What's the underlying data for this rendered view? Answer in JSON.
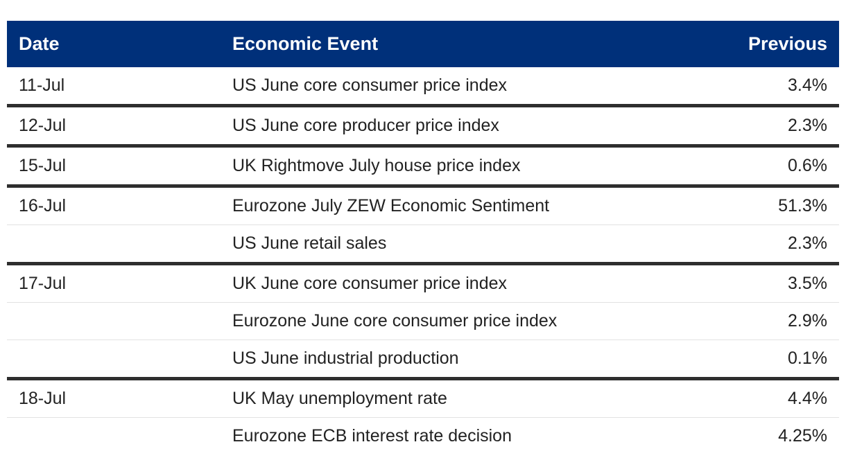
{
  "table": {
    "headers": {
      "date": "Date",
      "event": "Economic Event",
      "previous": "Previous"
    },
    "groups": [
      {
        "date": "11-Jul",
        "rows": [
          {
            "event": "US June core consumer price index",
            "previous": "3.4%"
          }
        ]
      },
      {
        "date": "12-Jul",
        "rows": [
          {
            "event": "US June core producer price index",
            "previous": "2.3%"
          }
        ]
      },
      {
        "date": "15-Jul",
        "rows": [
          {
            "event": "UK Rightmove July house price index",
            "previous": "0.6%"
          }
        ]
      },
      {
        "date": "16-Jul",
        "rows": [
          {
            "event": "Eurozone July ZEW Economic Sentiment",
            "previous": "51.3%"
          },
          {
            "event": "US June retail sales",
            "previous": "2.3%"
          }
        ]
      },
      {
        "date": "17-Jul",
        "rows": [
          {
            "event": "UK June core consumer price index",
            "previous": "3.5%"
          },
          {
            "event": "Eurozone June core consumer price index",
            "previous": "2.9%"
          },
          {
            "event": "US June industrial production",
            "previous": "0.1%"
          }
        ]
      },
      {
        "date": "18-Jul",
        "rows": [
          {
            "event": "UK May unemployment rate",
            "previous": "4.4%"
          },
          {
            "event": "Eurozone ECB interest rate decision",
            "previous": "4.25%"
          }
        ]
      }
    ],
    "colors": {
      "header_background": "#00307a",
      "header_text": "#ffffff",
      "group_divider": "#2e2e2e",
      "row_separator": "#e2e2e2"
    }
  }
}
